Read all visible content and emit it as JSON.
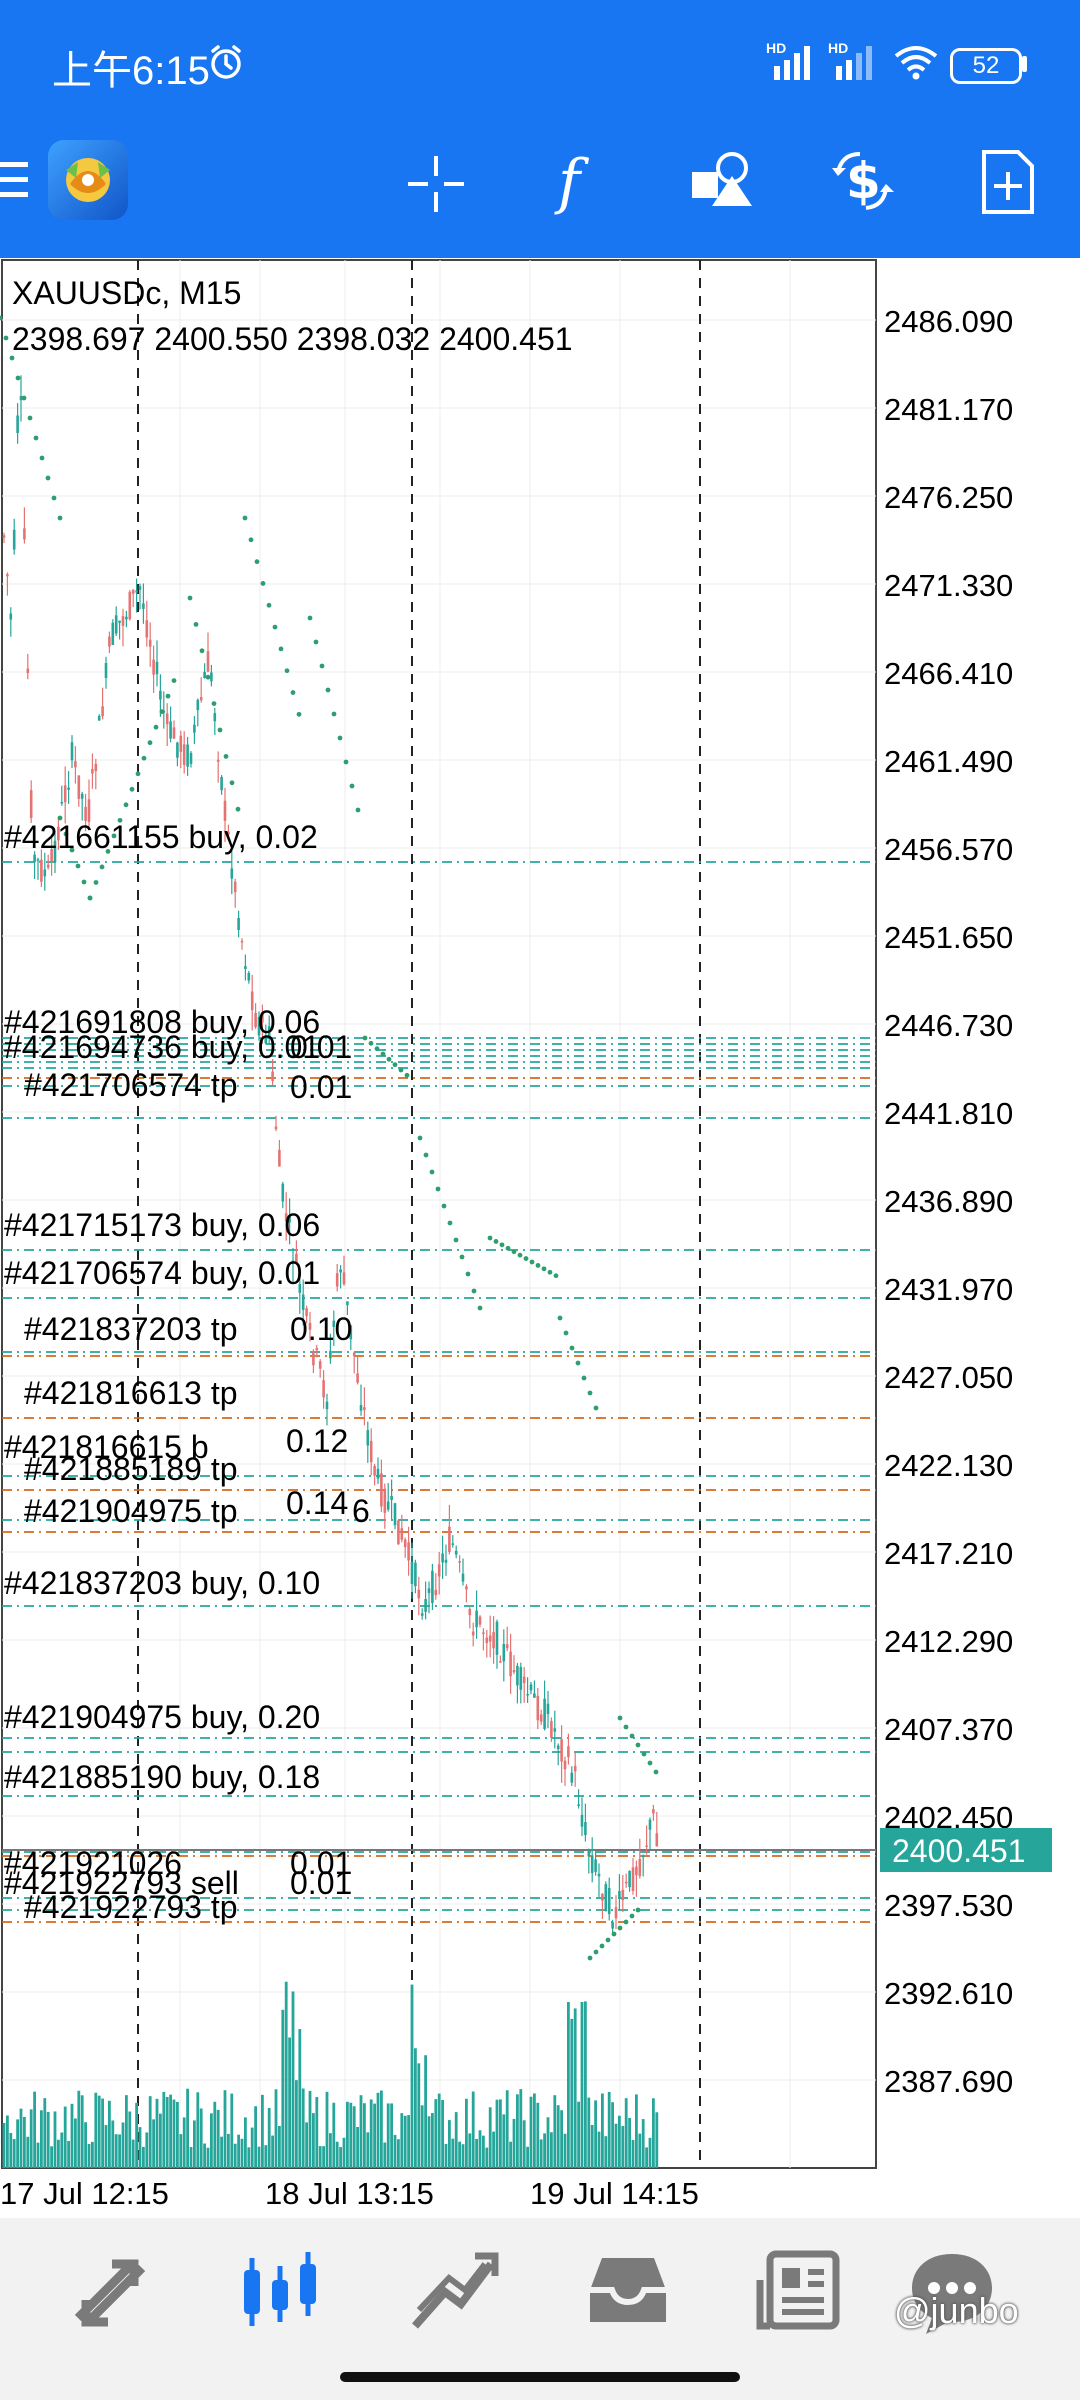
{
  "status_bar": {
    "time": "上午6:15",
    "signal_label": "HD",
    "battery": "52",
    "icons": [
      "alarm-icon",
      "signal-icon",
      "signal-icon",
      "wifi-icon",
      "battery-icon"
    ]
  },
  "toolbar": {
    "icons": [
      "menu-icon",
      "app-logo",
      "crosshair-icon",
      "indicator-f-icon",
      "objects-icon",
      "trade-dollar-icon",
      "new-order-icon"
    ]
  },
  "chart": {
    "symbol_line": "XAUUSDc, M15",
    "ohlc_line": "2398.697 2400.550 2398.032 2400.451",
    "current_price": "2400.451",
    "price_labels": [
      "2486.090",
      "2481.170",
      "2476.250",
      "2471.330",
      "2466.410",
      "2461.490",
      "2456.570",
      "2451.650",
      "2446.730",
      "2441.810",
      "2436.890",
      "2431.970",
      "2427.050",
      "2422.130",
      "2417.210",
      "2412.290",
      "2407.370",
      "2402.450",
      "2397.530",
      "2392.610",
      "2387.690"
    ],
    "time_labels": [
      "17 Jul 12:15",
      "18 Jul 13:15",
      "19 Jul 14:15"
    ],
    "order_labels": [
      "#421661155 buy, 0.02",
      "#421691808 buy, 0.06",
      "#421694736 buy, 0.01",
      "#421706574 tp",
      "0.01",
      "0.01",
      "#421715173 buy, 0.06",
      "#421706574 buy, 0.01",
      "#421837203 tp",
      "0.10",
      "#421816613 tp",
      "#421816615 b",
      "0.12",
      "#421885189 tp",
      "0.14",
      "#421904975 tp",
      "6",
      "#421837203 buy, 0.10",
      "#421904975 buy, 0.20",
      "#421885190 buy, 0.18",
      "#421921026",
      "0.01",
      "#421922793 sell",
      "0.01",
      "#421922793 tp"
    ],
    "colors": {
      "bull": "#26a69a",
      "bear": "#e57373",
      "volume": "#26a69a",
      "sar": "#2e9e6e",
      "order_line": "#26a69a",
      "tp_line": "#d2691e",
      "price_tag": "#26a69a"
    }
  },
  "bottom_nav": {
    "tabs": [
      "quotes-tab",
      "chart-tab",
      "trade-tab",
      "history-tab",
      "news-tab",
      "messages-tab"
    ],
    "watermark": "@junbo"
  }
}
